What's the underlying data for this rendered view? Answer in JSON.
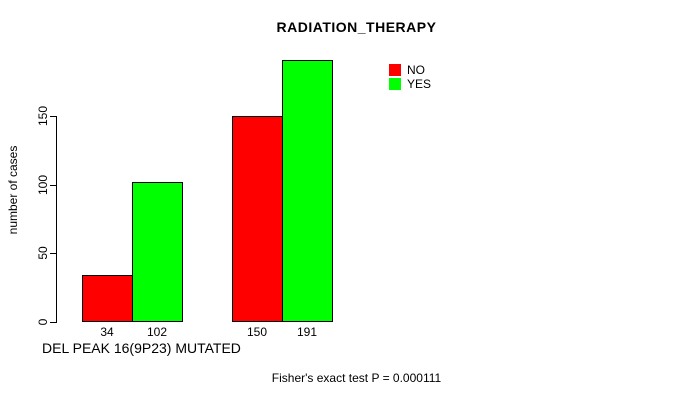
{
  "chart_data": {
    "type": "bar",
    "title": "RADIATION_THERAPY",
    "xlabel": "DEL PEAK 16(9P23) MUTATED",
    "ylabel": "number of cases",
    "yticks": [
      0,
      50,
      100,
      150
    ],
    "ylim": [
      0,
      150
    ],
    "grid": false,
    "legend_position": "top-right-inside",
    "series": [
      {
        "name": "NO",
        "color": "#ff0000",
        "values": [
          34,
          150
        ]
      },
      {
        "name": "YES",
        "color": "#00ff00",
        "values": [
          102,
          191
        ]
      }
    ],
    "annotation": "Fisher's exact test P = 0.000111"
  }
}
